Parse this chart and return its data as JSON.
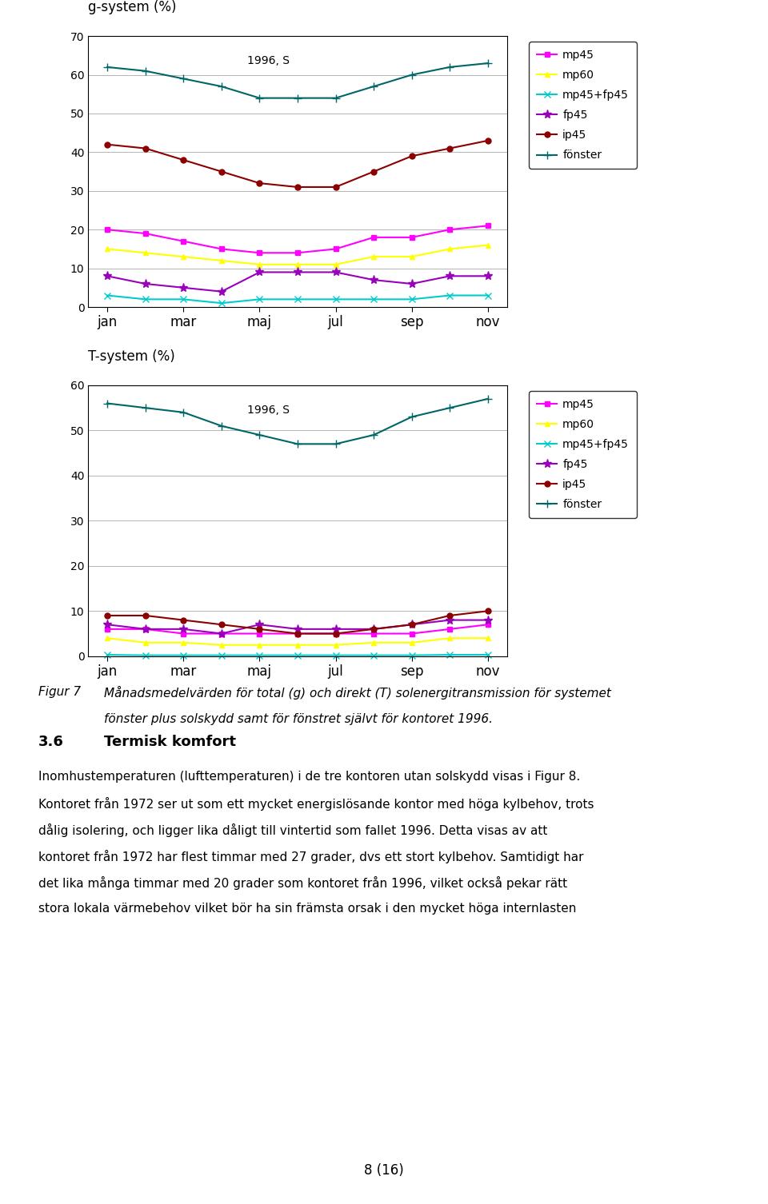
{
  "months_labels": [
    "jan",
    "mar",
    "maj",
    "jul",
    "sep",
    "nov"
  ],
  "chart1_title": "g-system (%)",
  "chart1_subtitle": "1996, S",
  "chart1_ylim": [
    0,
    70
  ],
  "chart1_yticks": [
    0,
    10,
    20,
    30,
    40,
    50,
    60,
    70
  ],
  "chart2_title": "T-system (%)",
  "chart2_subtitle": "1996, S",
  "chart2_ylim": [
    0,
    60
  ],
  "chart2_yticks": [
    0,
    10,
    20,
    30,
    40,
    50,
    60
  ],
  "months_x6": [
    1,
    3,
    5,
    7,
    9,
    11
  ],
  "months_x_ip45": [
    1,
    2,
    3,
    4,
    5,
    6,
    7,
    8,
    9,
    10,
    11
  ],
  "g_mp45": [
    20,
    19,
    17,
    15,
    14,
    14,
    15,
    18,
    18,
    20,
    21
  ],
  "g_mp60": [
    15,
    14,
    13,
    12,
    11,
    11,
    11,
    13,
    13,
    15,
    16
  ],
  "g_mp45fp45": [
    3,
    2,
    2,
    1,
    2,
    2,
    2,
    2,
    2,
    3,
    3
  ],
  "g_fp45": [
    8,
    6,
    5,
    4,
    9,
    9,
    9,
    7,
    6,
    8,
    8
  ],
  "g_ip45": [
    42,
    41,
    38,
    35,
    32,
    31,
    31,
    35,
    39,
    41,
    43
  ],
  "g_fonster": [
    62,
    61,
    59,
    57,
    54,
    54,
    54,
    57,
    60,
    62,
    63
  ],
  "t_mp45": [
    6,
    6,
    5,
    5,
    5,
    5,
    5,
    5,
    5,
    6,
    7
  ],
  "t_mp60": [
    4,
    3,
    3,
    2.5,
    2.5,
    2.5,
    2.5,
    3,
    3,
    4,
    4
  ],
  "t_mp45fp45": [
    0.3,
    0.2,
    0.2,
    0.2,
    0.2,
    0.2,
    0.2,
    0.2,
    0.2,
    0.3,
    0.3
  ],
  "t_fp45": [
    7,
    6,
    6,
    5,
    7,
    6,
    6,
    6,
    7,
    8,
    8
  ],
  "t_ip45": [
    9,
    9,
    8,
    7,
    6,
    5,
    5,
    6,
    7,
    9,
    10
  ],
  "t_fonster": [
    56,
    55,
    54,
    51,
    49,
    47,
    47,
    49,
    53,
    55,
    57
  ],
  "colors": {
    "mp45": "#ff00ff",
    "mp60": "#ffff00",
    "mp45fp45": "#00cccc",
    "fp45": "#9900bb",
    "ip45": "#8b0000",
    "fonster": "#006666"
  },
  "legend_labels": [
    "mp45",
    "mp60",
    "mp45+fp45",
    "fp45",
    "ip45",
    "fönster"
  ],
  "fig_caption_label": "Figur 7",
  "fig_caption_text1": "Månadsmedelvärden för total (g) och direkt (T) solenergitransmission för systemet",
  "fig_caption_text2": "fönster plus solskydd samt för fönstret självt för kontoret 1996.",
  "section_num": "3.6",
  "section_title": "Termisk komfort",
  "body_lines": [
    "Inomhustemperaturen (lufttemperaturen) i de tre kontoren utan solskydd visas i Figur 8.",
    "Kontoret från 1972 ser ut som ett mycket energislösande kontor med höga kylbehov, trots",
    "dålig isolering, och ligger lika dåligt till vintertid som fallet 1996. Detta visas av att",
    "kontoret från 1972 har flest timmar med 27 grader, dvs ett stort kylbehov. Samtidigt har",
    "det lika många timmar med 20 grader som kontoret från 1996, vilket också pekar rätt",
    "stora lokala värmebehov vilket bör ha sin främsta orsak i den mycket höga internlasten"
  ],
  "page_text": "8 (16)"
}
